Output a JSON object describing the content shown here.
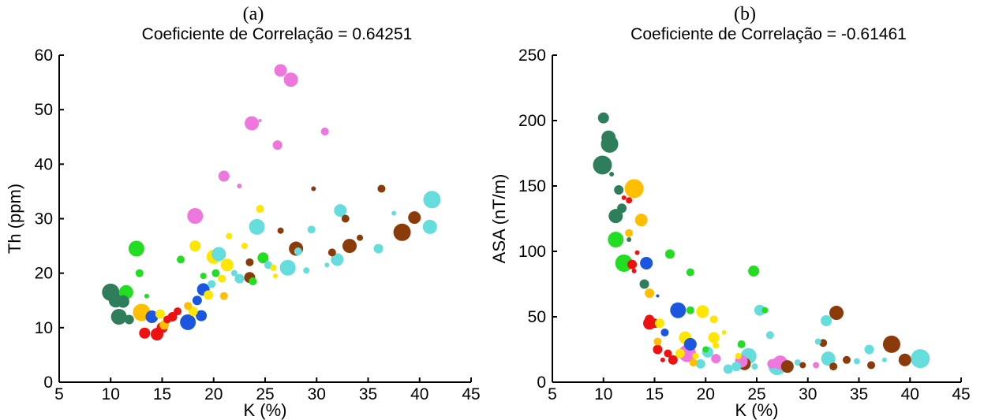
{
  "chart_data": [
    {
      "type": "scatter",
      "panel": "(a)",
      "title": "Coeficiente de Correlação = 0.64251",
      "xlabel": "K (%)",
      "ylabel": "Th (ppm)",
      "xlim": [
        5,
        45
      ],
      "ylim": [
        0,
        60
      ],
      "xticks": [
        "5",
        "10",
        "15",
        "20",
        "25",
        "30",
        "35",
        "40",
        "45"
      ],
      "yticks": [
        "0",
        "10",
        "20",
        "30",
        "40",
        "50",
        "60"
      ],
      "grid": false,
      "points": [
        {
          "x": 10.0,
          "y": 16.5,
          "s": 11,
          "c": "#2e7d5b"
        },
        {
          "x": 10.5,
          "y": 15.0,
          "s": 9,
          "c": "#2e7d5b"
        },
        {
          "x": 10.8,
          "y": 12.0,
          "s": 10,
          "c": "#2e7d5b"
        },
        {
          "x": 11.2,
          "y": 14.8,
          "s": 8,
          "c": "#2e7d5b"
        },
        {
          "x": 11.8,
          "y": 11.5,
          "s": 6,
          "c": "#2e7d5b"
        },
        {
          "x": 11.5,
          "y": 16.5,
          "s": 9,
          "c": "#22dd22"
        },
        {
          "x": 12.5,
          "y": 24.5,
          "s": 10,
          "c": "#22dd22"
        },
        {
          "x": 12.8,
          "y": 20.0,
          "s": 5,
          "c": "#22dd22"
        },
        {
          "x": 13.5,
          "y": 15.8,
          "s": 3,
          "c": "#22dd22"
        },
        {
          "x": 13.0,
          "y": 12.8,
          "s": 11,
          "c": "#ffbf00"
        },
        {
          "x": 13.3,
          "y": 9.0,
          "s": 7,
          "c": "#ee1111"
        },
        {
          "x": 14.0,
          "y": 12.0,
          "s": 8,
          "c": "#1a56e0"
        },
        {
          "x": 14.5,
          "y": 8.8,
          "s": 8,
          "c": "#ee1111"
        },
        {
          "x": 15.0,
          "y": 10.0,
          "s": 7,
          "c": "#ee1111"
        },
        {
          "x": 15.5,
          "y": 11.5,
          "s": 5,
          "c": "#ee1111"
        },
        {
          "x": 14.8,
          "y": 12.5,
          "s": 6,
          "c": "#ffe600"
        },
        {
          "x": 15.2,
          "y": 10.5,
          "s": 6,
          "c": "#ffbf00"
        },
        {
          "x": 16.0,
          "y": 12.0,
          "s": 6,
          "c": "#ee1111"
        },
        {
          "x": 16.5,
          "y": 13.0,
          "s": 5,
          "c": "#ee1111"
        },
        {
          "x": 16.8,
          "y": 22.5,
          "s": 5,
          "c": "#22dd22"
        },
        {
          "x": 17.5,
          "y": 11.0,
          "s": 10,
          "c": "#1a56e0"
        },
        {
          "x": 17.5,
          "y": 14.0,
          "s": 5,
          "c": "#ffbf00"
        },
        {
          "x": 18.0,
          "y": 13.0,
          "s": 6,
          "c": "#ffe600"
        },
        {
          "x": 18.2,
          "y": 25.0,
          "s": 7,
          "c": "#ffe600"
        },
        {
          "x": 18.2,
          "y": 30.5,
          "s": 10,
          "c": "#ee77dd"
        },
        {
          "x": 18.4,
          "y": 15.0,
          "s": 6,
          "c": "#1a56e0"
        },
        {
          "x": 18.8,
          "y": 12.2,
          "s": 7,
          "c": "#1a56e0"
        },
        {
          "x": 19.0,
          "y": 17.0,
          "s": 8,
          "c": "#1a56e0"
        },
        {
          "x": 19.0,
          "y": 19.5,
          "s": 4,
          "c": "#22dd22"
        },
        {
          "x": 19.5,
          "y": 16.0,
          "s": 6,
          "c": "#ffe600"
        },
        {
          "x": 19.8,
          "y": 18.0,
          "s": 5,
          "c": "#66dddd"
        },
        {
          "x": 20.0,
          "y": 23.0,
          "s": 9,
          "c": "#ffe600"
        },
        {
          "x": 20.2,
          "y": 20.0,
          "s": 5,
          "c": "#22dd22"
        },
        {
          "x": 20.5,
          "y": 23.5,
          "s": 9,
          "c": "#66dddd"
        },
        {
          "x": 20.8,
          "y": 19.0,
          "s": 5,
          "c": "#ffe600"
        },
        {
          "x": 21.0,
          "y": 37.8,
          "s": 7,
          "c": "#ee77dd"
        },
        {
          "x": 21.0,
          "y": 15.8,
          "s": 5,
          "c": "#ffbf00"
        },
        {
          "x": 21.3,
          "y": 21.5,
          "s": 8,
          "c": "#ffe600"
        },
        {
          "x": 21.5,
          "y": 26.8,
          "s": 4,
          "c": "#ffe600"
        },
        {
          "x": 22.0,
          "y": 20.0,
          "s": 4,
          "c": "#66dddd"
        },
        {
          "x": 22.5,
          "y": 19.0,
          "s": 6,
          "c": "#66dddd"
        },
        {
          "x": 22.5,
          "y": 36.0,
          "s": 3,
          "c": "#ee77dd"
        },
        {
          "x": 23.0,
          "y": 25.0,
          "s": 4,
          "c": "#ffe600"
        },
        {
          "x": 23.5,
          "y": 19.2,
          "s": 7,
          "c": "#8b3a0a"
        },
        {
          "x": 23.5,
          "y": 22.0,
          "s": 5,
          "c": "#8b3a0a"
        },
        {
          "x": 23.7,
          "y": 47.5,
          "s": 9,
          "c": "#ee77dd"
        },
        {
          "x": 23.8,
          "y": 18.5,
          "s": 5,
          "c": "#22dd22"
        },
        {
          "x": 24.2,
          "y": 28.5,
          "s": 10,
          "c": "#66dddd"
        },
        {
          "x": 24.5,
          "y": 31.8,
          "s": 5,
          "c": "#ffe600"
        },
        {
          "x": 24.5,
          "y": 48.0,
          "s": 2,
          "c": "#ee77dd"
        },
        {
          "x": 24.8,
          "y": 22.8,
          "s": 7,
          "c": "#22dd22"
        },
        {
          "x": 25.3,
          "y": 21.5,
          "s": 5,
          "c": "#66dddd"
        },
        {
          "x": 25.8,
          "y": 21.0,
          "s": 4,
          "c": "#ffe600"
        },
        {
          "x": 26.0,
          "y": 19.5,
          "s": 3,
          "c": "#ffe600"
        },
        {
          "x": 26.2,
          "y": 43.5,
          "s": 6,
          "c": "#ee77dd"
        },
        {
          "x": 26.5,
          "y": 57.2,
          "s": 8,
          "c": "#ee77dd"
        },
        {
          "x": 26.5,
          "y": 27.8,
          "s": 4,
          "c": "#8b3a0a"
        },
        {
          "x": 27.2,
          "y": 21.0,
          "s": 10,
          "c": "#66dddd"
        },
        {
          "x": 27.5,
          "y": 55.5,
          "s": 9,
          "c": "#ee77dd"
        },
        {
          "x": 28.0,
          "y": 24.5,
          "s": 9,
          "c": "#8b3a0a"
        },
        {
          "x": 28.2,
          "y": 24.0,
          "s": 5,
          "c": "#66dddd"
        },
        {
          "x": 29.0,
          "y": 20.5,
          "s": 4,
          "c": "#66dddd"
        },
        {
          "x": 29.5,
          "y": 28.0,
          "s": 5,
          "c": "#66dddd"
        },
        {
          "x": 29.7,
          "y": 35.5,
          "s": 3,
          "c": "#8b3a0a"
        },
        {
          "x": 30.8,
          "y": 46.0,
          "s": 5,
          "c": "#ee77dd"
        },
        {
          "x": 31.0,
          "y": 21.5,
          "s": 3,
          "c": "#66dddd"
        },
        {
          "x": 31.5,
          "y": 23.8,
          "s": 5,
          "c": "#8b3a0a"
        },
        {
          "x": 32.0,
          "y": 22.5,
          "s": 8,
          "c": "#66dddd"
        },
        {
          "x": 32.3,
          "y": 31.5,
          "s": 8,
          "c": "#66dddd"
        },
        {
          "x": 32.8,
          "y": 30.0,
          "s": 5,
          "c": "#8b3a0a"
        },
        {
          "x": 33.2,
          "y": 25.0,
          "s": 9,
          "c": "#8b3a0a"
        },
        {
          "x": 34.2,
          "y": 26.5,
          "s": 4,
          "c": "#8b3a0a"
        },
        {
          "x": 36.0,
          "y": 24.5,
          "s": 6,
          "c": "#66dddd"
        },
        {
          "x": 36.3,
          "y": 35.5,
          "s": 5,
          "c": "#8b3a0a"
        },
        {
          "x": 37.5,
          "y": 31.0,
          "s": 3,
          "c": "#66dddd"
        },
        {
          "x": 38.3,
          "y": 27.5,
          "s": 11,
          "c": "#8b3a0a"
        },
        {
          "x": 39.5,
          "y": 30.2,
          "s": 8,
          "c": "#8b3a0a"
        },
        {
          "x": 41.0,
          "y": 28.5,
          "s": 9,
          "c": "#66dddd"
        },
        {
          "x": 41.2,
          "y": 33.5,
          "s": 11,
          "c": "#66dddd"
        }
      ]
    },
    {
      "type": "scatter",
      "panel": "(b)",
      "title": "Coeficiente de Correlação = -0.61461",
      "xlabel": "K (%)",
      "ylabel": "ASA (nT/m)",
      "xlim": [
        5,
        45
      ],
      "ylim": [
        0,
        250
      ],
      "xticks": [
        "5",
        "10",
        "15",
        "20",
        "25",
        "30",
        "35",
        "40",
        "45"
      ],
      "yticks": [
        "0",
        "50",
        "100",
        "150",
        "200",
        "250"
      ],
      "grid": false,
      "points": [
        {
          "x": 10.0,
          "y": 202,
          "s": 7,
          "c": "#2e7d5b"
        },
        {
          "x": 10.5,
          "y": 187,
          "s": 9,
          "c": "#2e7d5b"
        },
        {
          "x": 10.6,
          "y": 182,
          "s": 11,
          "c": "#2e7d5b"
        },
        {
          "x": 9.9,
          "y": 166,
          "s": 12,
          "c": "#2e7d5b"
        },
        {
          "x": 10.8,
          "y": 159,
          "s": 3,
          "c": "#2e7d5b"
        },
        {
          "x": 11.5,
          "y": 147,
          "s": 6,
          "c": "#2e7d5b"
        },
        {
          "x": 11.8,
          "y": 133,
          "s": 6,
          "c": "#2e7d5b"
        },
        {
          "x": 11.2,
          "y": 127,
          "s": 9,
          "c": "#2e7d5b"
        },
        {
          "x": 12.0,
          "y": 141,
          "s": 3,
          "c": "#ee1111"
        },
        {
          "x": 12.5,
          "y": 139,
          "s": 4,
          "c": "#ee1111"
        },
        {
          "x": 13.0,
          "y": 148,
          "s": 12,
          "c": "#ffbf00"
        },
        {
          "x": 12.5,
          "y": 114,
          "s": 5,
          "c": "#ffbf00"
        },
        {
          "x": 12.5,
          "y": 109,
          "s": 3,
          "c": "#2e7d5b"
        },
        {
          "x": 11.2,
          "y": 109,
          "s": 10,
          "c": "#22dd22"
        },
        {
          "x": 13.7,
          "y": 124,
          "s": 8,
          "c": "#ffbf00"
        },
        {
          "x": 12.0,
          "y": 91,
          "s": 11,
          "c": "#22dd22"
        },
        {
          "x": 12.8,
          "y": 90,
          "s": 6,
          "c": "#ee1111"
        },
        {
          "x": 13.3,
          "y": 99,
          "s": 3,
          "c": "#ee1111"
        },
        {
          "x": 13.0,
          "y": 85,
          "s": 3,
          "c": "#ee1111"
        },
        {
          "x": 14.2,
          "y": 91,
          "s": 8,
          "c": "#1a56e0"
        },
        {
          "x": 14.0,
          "y": 75,
          "s": 6,
          "c": "#2e7d5b"
        },
        {
          "x": 14.5,
          "y": 68,
          "s": 6,
          "c": "#ffbf00"
        },
        {
          "x": 15.3,
          "y": 66,
          "s": 2,
          "c": "#1a56e0"
        },
        {
          "x": 16.5,
          "y": 98,
          "s": 6,
          "c": "#22dd22"
        },
        {
          "x": 18.5,
          "y": 84,
          "s": 5,
          "c": "#22dd22"
        },
        {
          "x": 17.3,
          "y": 55,
          "s": 10,
          "c": "#1a56e0"
        },
        {
          "x": 18.5,
          "y": 55,
          "s": 5,
          "c": "#22dd22"
        },
        {
          "x": 19.7,
          "y": 54,
          "s": 8,
          "c": "#ffe600"
        },
        {
          "x": 20.8,
          "y": 48,
          "s": 5,
          "c": "#ffe600"
        },
        {
          "x": 14.5,
          "y": 48,
          "s": 6,
          "c": "#ee1111"
        },
        {
          "x": 14.5,
          "y": 45,
          "s": 8,
          "c": "#ee1111"
        },
        {
          "x": 15.0,
          "y": 45,
          "s": 6,
          "c": "#ee1111"
        },
        {
          "x": 15.5,
          "y": 45,
          "s": 6,
          "c": "#ffe600"
        },
        {
          "x": 16.0,
          "y": 38,
          "s": 5,
          "c": "#1a56e0"
        },
        {
          "x": 15.3,
          "y": 31,
          "s": 5,
          "c": "#ffbf00"
        },
        {
          "x": 15.3,
          "y": 25,
          "s": 6,
          "c": "#ee1111"
        },
        {
          "x": 16.3,
          "y": 22,
          "s": 5,
          "c": "#ee1111"
        },
        {
          "x": 16.8,
          "y": 17,
          "s": 6,
          "c": "#ee1111"
        },
        {
          "x": 15.8,
          "y": 17,
          "s": 3,
          "c": "#ee1111"
        },
        {
          "x": 17.5,
          "y": 22,
          "s": 6,
          "c": "#ffe600"
        },
        {
          "x": 18.0,
          "y": 34,
          "s": 8,
          "c": "#ffe600"
        },
        {
          "x": 18.5,
          "y": 29,
          "s": 8,
          "c": "#1a56e0"
        },
        {
          "x": 18.2,
          "y": 22,
          "s": 11,
          "c": "#ee77dd"
        },
        {
          "x": 18.8,
          "y": 15,
          "s": 5,
          "c": "#ffbf00"
        },
        {
          "x": 19.5,
          "y": 14,
          "s": 6,
          "c": "#66dddd"
        },
        {
          "x": 19.0,
          "y": 20,
          "s": 4,
          "c": "#ffe600"
        },
        {
          "x": 20.0,
          "y": 25,
          "s": 4,
          "c": "#22dd22"
        },
        {
          "x": 20.2,
          "y": 23,
          "s": 7,
          "c": "#66dddd"
        },
        {
          "x": 20.8,
          "y": 34,
          "s": 7,
          "c": "#ffe600"
        },
        {
          "x": 21.0,
          "y": 18,
          "s": 6,
          "c": "#ee77dd"
        },
        {
          "x": 21.0,
          "y": 28,
          "s": 4,
          "c": "#ffe600"
        },
        {
          "x": 21.8,
          "y": 38,
          "s": 3,
          "c": "#ffe600"
        },
        {
          "x": 22.2,
          "y": 10,
          "s": 6,
          "c": "#66dddd"
        },
        {
          "x": 23.0,
          "y": 12,
          "s": 6,
          "c": "#66dddd"
        },
        {
          "x": 23.2,
          "y": 20,
          "s": 4,
          "c": "#ffe600"
        },
        {
          "x": 23.5,
          "y": 29,
          "s": 5,
          "c": "#22dd22"
        },
        {
          "x": 23.8,
          "y": 14,
          "s": 8,
          "c": "#8b3a0a"
        },
        {
          "x": 23.5,
          "y": 16,
          "s": 8,
          "c": "#ee77dd"
        },
        {
          "x": 24.2,
          "y": 20,
          "s": 10,
          "c": "#66dddd"
        },
        {
          "x": 24.8,
          "y": 12,
          "s": 4,
          "c": "#66dddd"
        },
        {
          "x": 24.7,
          "y": 85,
          "s": 7,
          "c": "#22dd22"
        },
        {
          "x": 25.3,
          "y": 55,
          "s": 7,
          "c": "#66dddd"
        },
        {
          "x": 25.8,
          "y": 55,
          "s": 4,
          "c": "#22dd22"
        },
        {
          "x": 26.3,
          "y": 36,
          "s": 5,
          "c": "#66dddd"
        },
        {
          "x": 26.5,
          "y": 14,
          "s": 6,
          "c": "#ee77dd"
        },
        {
          "x": 27.0,
          "y": 12,
          "s": 11,
          "c": "#66dddd"
        },
        {
          "x": 27.3,
          "y": 15,
          "s": 9,
          "c": "#ee77dd"
        },
        {
          "x": 27.5,
          "y": 14,
          "s": 8,
          "c": "#ee77dd"
        },
        {
          "x": 28.0,
          "y": 12,
          "s": 8,
          "c": "#8b3a0a"
        },
        {
          "x": 29.0,
          "y": 15,
          "s": 4,
          "c": "#66dddd"
        },
        {
          "x": 29.5,
          "y": 13,
          "s": 4,
          "c": "#8b3a0a"
        },
        {
          "x": 30.8,
          "y": 13,
          "s": 4,
          "c": "#ee77dd"
        },
        {
          "x": 31.0,
          "y": 31,
          "s": 4,
          "c": "#66dddd"
        },
        {
          "x": 31.5,
          "y": 30,
          "s": 5,
          "c": "#8b3a0a"
        },
        {
          "x": 31.8,
          "y": 47,
          "s": 7,
          "c": "#66dddd"
        },
        {
          "x": 32.0,
          "y": 18,
          "s": 9,
          "c": "#66dddd"
        },
        {
          "x": 32.5,
          "y": 12,
          "s": 5,
          "c": "#8b3a0a"
        },
        {
          "x": 32.8,
          "y": 53,
          "s": 9,
          "c": "#8b3a0a"
        },
        {
          "x": 33.8,
          "y": 17,
          "s": 5,
          "c": "#8b3a0a"
        },
        {
          "x": 34.8,
          "y": 16,
          "s": 4,
          "c": "#66dddd"
        },
        {
          "x": 36.0,
          "y": 25,
          "s": 6,
          "c": "#66dddd"
        },
        {
          "x": 36.2,
          "y": 13,
          "s": 5,
          "c": "#8b3a0a"
        },
        {
          "x": 37.5,
          "y": 17,
          "s": 3,
          "c": "#66dddd"
        },
        {
          "x": 38.2,
          "y": 29,
          "s": 11,
          "c": "#8b3a0a"
        },
        {
          "x": 39.5,
          "y": 17,
          "s": 8,
          "c": "#8b3a0a"
        },
        {
          "x": 41.0,
          "y": 18,
          "s": 12,
          "c": "#66dddd"
        }
      ]
    }
  ]
}
